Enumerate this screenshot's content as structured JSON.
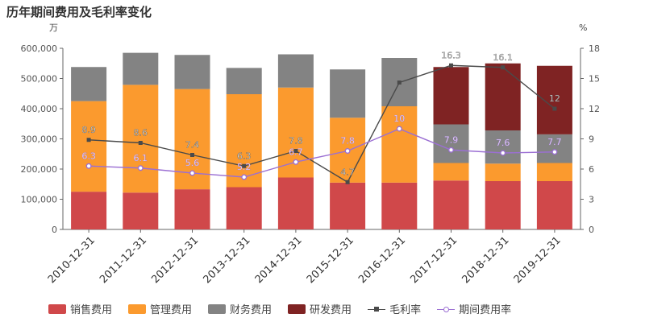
{
  "title": "历年期间费用及毛利率变化",
  "chart_data": {
    "type": "bar",
    "stacked": true,
    "title": "历年期间费用及毛利率变化",
    "left_unit": "万",
    "right_unit": "%",
    "categories": [
      "2010-12-31",
      "2011-12-31",
      "2012-12-31",
      "2013-12-31",
      "2014-12-31",
      "2015-12-31",
      "2016-12-31",
      "2017-12-31",
      "2018-12-31",
      "2019-12-31"
    ],
    "ylim_left": [
      0,
      600000
    ],
    "yticks_left": [
      0,
      100000,
      200000,
      300000,
      400000,
      500000,
      600000
    ],
    "ytick_labels_left": [
      "0",
      "100,000",
      "200,000",
      "300,000",
      "400,000",
      "500,000",
      "600,000"
    ],
    "ylim_right": [
      0,
      18
    ],
    "yticks_right": [
      0,
      3,
      6,
      9,
      12,
      15,
      18
    ],
    "ytick_labels_right": [
      "0",
      "3",
      "6",
      "9",
      "12",
      "15",
      "18"
    ],
    "series": [
      {
        "name": "销售费用",
        "kind": "bar",
        "axis": "left",
        "color": "#d0484a",
        "values": [
          125000,
          122000,
          133000,
          140000,
          172000,
          155000,
          155000,
          162000,
          160000,
          160000
        ]
      },
      {
        "name": "管理费用",
        "kind": "bar",
        "axis": "left",
        "color": "#fb9a2e",
        "values": [
          300000,
          357000,
          332000,
          308000,
          298000,
          215000,
          253000,
          58000,
          58000,
          60000
        ]
      },
      {
        "name": "财务费用",
        "kind": "bar",
        "axis": "left",
        "color": "#838383",
        "values": [
          113000,
          106000,
          113000,
          87000,
          110000,
          160000,
          160000,
          128000,
          110000,
          95000
        ]
      },
      {
        "name": "研发费用",
        "kind": "bar",
        "axis": "left",
        "color": "#7f2323",
        "values": [
          0,
          0,
          0,
          0,
          0,
          0,
          0,
          190000,
          222000,
          227000
        ]
      },
      {
        "name": "毛利率",
        "kind": "line",
        "axis": "right",
        "color": "#4a4a4a",
        "marker": "square",
        "values": [
          8.9,
          8.6,
          7.4,
          6.3,
          7.8,
          4.7,
          14.6,
          16.3,
          16.1,
          12
        ],
        "labels": [
          "8.9",
          "8.6",
          "7.4",
          "6.3",
          "7.8",
          "4.7",
          "",
          "16.3",
          "16.1",
          "12"
        ]
      },
      {
        "name": "期间费用率",
        "kind": "line",
        "axis": "right",
        "color": "#9b6fd3",
        "marker": "circle",
        "values": [
          6.3,
          6.1,
          5.6,
          5.2,
          6.7,
          7.8,
          10,
          7.9,
          7.6,
          7.7
        ],
        "labels": [
          "6.3",
          "6.1",
          "5.6",
          "5.2",
          "6.7",
          "7.8",
          "10",
          "7.9",
          "7.6",
          "7.7"
        ]
      }
    ],
    "legend_position": "bottom",
    "grid": false
  }
}
